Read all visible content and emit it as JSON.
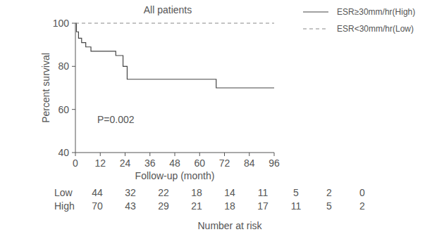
{
  "chart_data": {
    "type": "step",
    "title": "All patients",
    "xlabel": "Follow-up (month)",
    "ylabel": "Percent survival",
    "annotation": "P=0.002",
    "x": [
      0,
      0.5,
      1.5,
      3,
      5,
      7.5,
      19.5,
      23,
      25,
      68,
      96
    ],
    "series": [
      {
        "name": "ESR≥30mm/hr(High)",
        "color": "#444444",
        "line_style": "solid",
        "values": [
          100,
          96,
          93,
          91,
          89,
          87,
          85,
          80,
          74,
          70,
          70
        ]
      },
      {
        "name": "ESR<30mm/hr(Low)",
        "color": "#8a8a8a",
        "line_style": "dashed",
        "values": [
          100,
          100,
          100,
          100,
          100,
          100,
          100,
          100,
          100,
          100,
          100
        ]
      }
    ],
    "xlim": [
      0,
      96
    ],
    "xticks": [
      0,
      12,
      24,
      36,
      48,
      60,
      72,
      84,
      96
    ],
    "ylim": [
      40,
      100
    ],
    "yticks": [
      40,
      60,
      80,
      100
    ],
    "grid": false,
    "legend": "top-right",
    "risk_table": {
      "title": "Number at risk",
      "rows": [
        {
          "label": "Low",
          "values": [
            44,
            32,
            22,
            18,
            14,
            11,
            5,
            2,
            0
          ]
        },
        {
          "label": "High",
          "values": [
            70,
            43,
            29,
            21,
            18,
            17,
            11,
            5,
            2
          ]
        }
      ]
    }
  }
}
